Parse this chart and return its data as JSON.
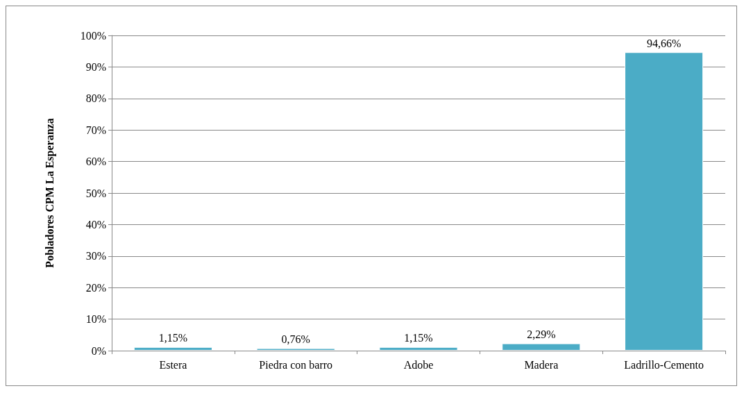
{
  "chart_data": {
    "type": "bar",
    "ylabel": "Pobladores CPM La Esperanza",
    "categories": [
      "Estera",
      "Piedra con barro",
      "Adobe",
      "Madera",
      "Ladrillo-Cemento"
    ],
    "values": [
      1.15,
      0.76,
      1.15,
      2.29,
      94.66
    ],
    "value_labels": [
      "1,15%",
      "0,76%",
      "1,15%",
      "2,29%",
      "94,66%"
    ],
    "color": "#4bacc6",
    "ylim": [
      0,
      100
    ],
    "yticks": [
      {
        "value": 0,
        "label": "0%"
      },
      {
        "value": 10,
        "label": "10%"
      },
      {
        "value": 20,
        "label": "20%"
      },
      {
        "value": 30,
        "label": "30%"
      },
      {
        "value": 40,
        "label": "40%"
      },
      {
        "value": 50,
        "label": "50%"
      },
      {
        "value": 60,
        "label": "60%"
      },
      {
        "value": 70,
        "label": "70%"
      },
      {
        "value": 80,
        "label": "80%"
      },
      {
        "value": 90,
        "label": "90%"
      },
      {
        "value": 100,
        "label": "100%"
      }
    ],
    "grid": "y"
  }
}
